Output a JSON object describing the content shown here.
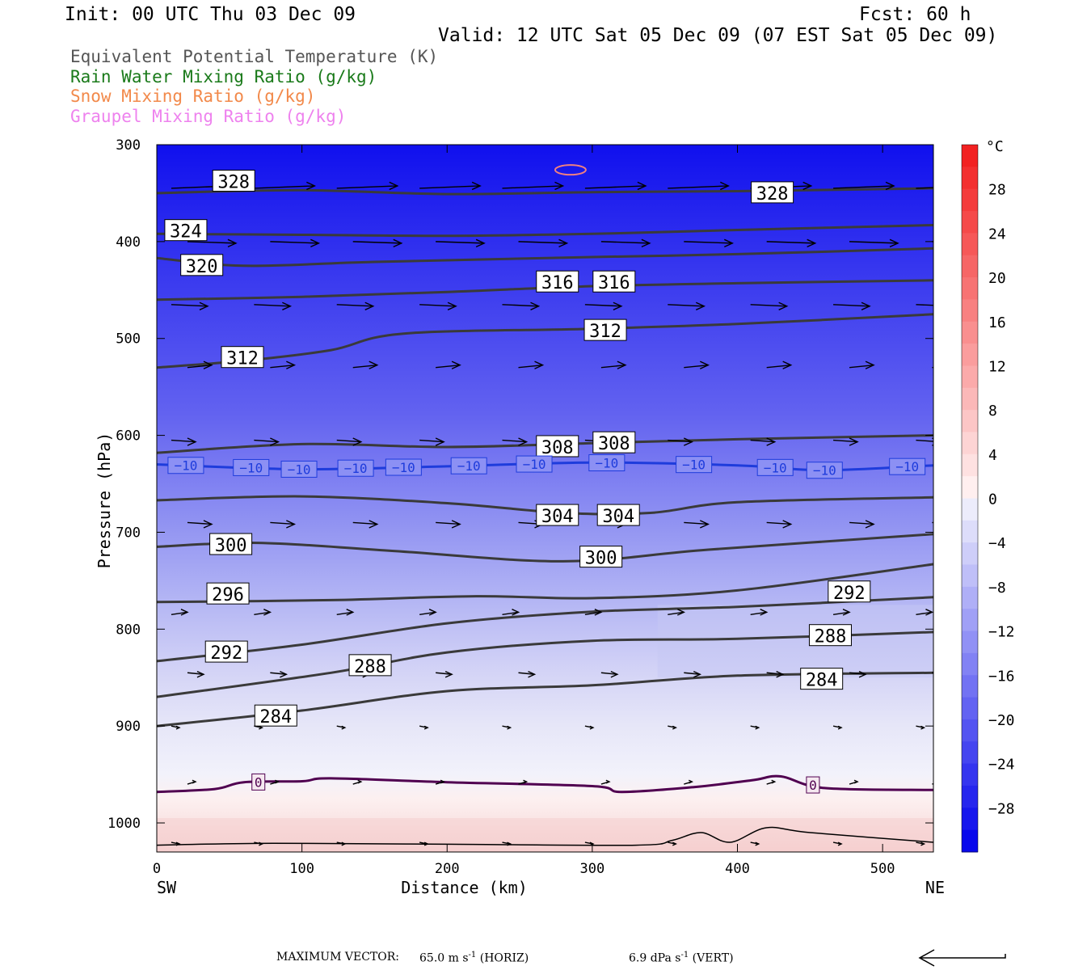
{
  "header": {
    "init": "Init: 00 UTC Thu 03 Dec 09",
    "fcst": "Fcst:   60 h",
    "valid": "Valid: 12 UTC Sat 05 Dec 09 (07 EST Sat 05 Dec 09)"
  },
  "legend": [
    {
      "label": "Equivalent Potential Temperature (K)",
      "color": "#555555"
    },
    {
      "label": "Rain Water Mixing Ratio (g/kg)",
      "color": "#1a7a1a"
    },
    {
      "label": "Snow Mixing Ratio (g/kg)",
      "color": "#f2894a"
    },
    {
      "label": "Graupel Mixing Ratio (g/kg)",
      "color": "#ee82ee"
    }
  ],
  "footer": {
    "max_vector_label": "MAXIMUM VECTOR:",
    "horiz": "65.0 m s",
    "horiz_unit": "(HORIZ)",
    "vert": "6.9 dPa s",
    "vert_unit": "(VERT)",
    "superscript": "-1"
  },
  "chart_data": {
    "type": "cross-section",
    "xlabel": "Distance (km)",
    "ylabel": "Pressure (hPa)",
    "x_ticks": [
      0,
      100,
      200,
      300,
      400,
      500
    ],
    "x_range": [
      0,
      535
    ],
    "x_end_labels": {
      "left": "SW",
      "right": "NE"
    },
    "y_ticks": [
      300,
      400,
      500,
      600,
      700,
      800,
      900,
      1000
    ],
    "y_range": [
      300,
      1030
    ],
    "colorbar": {
      "unit": "°C",
      "tick_labels": [
        "28",
        "24",
        "20",
        "16",
        "12",
        "8",
        "4",
        "0",
        "−4",
        "−8",
        "−12",
        "−16",
        "−20",
        "−24",
        "−28"
      ],
      "tick_values": [
        28,
        24,
        20,
        16,
        12,
        8,
        4,
        0,
        -4,
        -8,
        -12,
        -16,
        -20,
        -24,
        -28
      ],
      "range": [
        -32,
        32
      ]
    },
    "theta_e_contours": [
      {
        "value": 328,
        "points": [
          [
            0,
            350
          ],
          [
            100,
            347
          ],
          [
            200,
            351
          ],
          [
            300,
            349
          ],
          [
            400,
            348
          ],
          [
            535,
            345
          ]
        ]
      },
      {
        "value": 324,
        "points": [
          [
            0,
            392
          ],
          [
            100,
            393
          ],
          [
            200,
            394
          ],
          [
            300,
            392
          ],
          [
            400,
            388
          ],
          [
            535,
            383
          ]
        ]
      },
      {
        "value": 320,
        "points": [
          [
            0,
            417
          ],
          [
            60,
            425
          ],
          [
            150,
            421
          ],
          [
            300,
            416
          ],
          [
            400,
            413
          ],
          [
            535,
            407
          ]
        ]
      },
      {
        "value": 316,
        "points": [
          [
            0,
            460
          ],
          [
            100,
            457
          ],
          [
            200,
            452
          ],
          [
            300,
            446
          ],
          [
            400,
            443
          ],
          [
            535,
            440
          ]
        ]
      },
      {
        "value": 312,
        "points": [
          [
            0,
            530
          ],
          [
            60,
            523
          ],
          [
            120,
            512
          ],
          [
            170,
            495
          ],
          [
            300,
            490
          ],
          [
            400,
            485
          ],
          [
            535,
            475
          ]
        ]
      },
      {
        "value": 308,
        "points": [
          [
            0,
            618
          ],
          [
            100,
            609
          ],
          [
            200,
            612
          ],
          [
            300,
            608
          ],
          [
            400,
            604
          ],
          [
            535,
            600
          ]
        ]
      },
      {
        "value": 304,
        "points": [
          [
            0,
            667
          ],
          [
            100,
            663
          ],
          [
            200,
            670
          ],
          [
            280,
            680
          ],
          [
            340,
            680
          ],
          [
            400,
            669
          ],
          [
            535,
            664
          ]
        ]
      },
      {
        "value": 300,
        "points": [
          [
            0,
            715
          ],
          [
            70,
            711
          ],
          [
            160,
            719
          ],
          [
            280,
            730
          ],
          [
            380,
            718
          ],
          [
            535,
            702
          ]
        ]
      },
      {
        "value": 296,
        "points": [
          [
            0,
            772
          ],
          [
            120,
            770
          ],
          [
            220,
            766
          ],
          [
            300,
            768
          ],
          [
            400,
            760
          ],
          [
            535,
            733
          ]
        ]
      },
      {
        "value": 292,
        "points": [
          [
            0,
            833
          ],
          [
            100,
            816
          ],
          [
            200,
            794
          ],
          [
            300,
            782
          ],
          [
            400,
            777
          ],
          [
            535,
            767
          ]
        ]
      },
      {
        "value": 288,
        "points": [
          [
            0,
            870
          ],
          [
            120,
            845
          ],
          [
            200,
            824
          ],
          [
            300,
            812
          ],
          [
            400,
            810
          ],
          [
            535,
            803
          ]
        ]
      },
      {
        "value": 284,
        "points": [
          [
            0,
            900
          ],
          [
            100,
            884
          ],
          [
            200,
            864
          ],
          [
            300,
            858
          ],
          [
            400,
            848
          ],
          [
            535,
            845
          ]
        ]
      }
    ],
    "contour_labels": [
      {
        "text": "328",
        "x": 53,
        "y": 338
      },
      {
        "text": "328",
        "x": 424,
        "y": 350
      },
      {
        "text": "324",
        "x": 20,
        "y": 389
      },
      {
        "text": "320",
        "x": 31,
        "y": 425
      },
      {
        "text": "316",
        "x": 276,
        "y": 442
      },
      {
        "text": "316",
        "x": 315,
        "y": 442
      },
      {
        "text": "312",
        "x": 309,
        "y": 492
      },
      {
        "text": "312",
        "x": 59,
        "y": 520
      },
      {
        "text": "308",
        "x": 276,
        "y": 612
      },
      {
        "text": "308",
        "x": 315,
        "y": 608
      },
      {
        "text": "304",
        "x": 276,
        "y": 683
      },
      {
        "text": "304",
        "x": 318,
        "y": 683
      },
      {
        "text": "300",
        "x": 51,
        "y": 713
      },
      {
        "text": "300",
        "x": 306,
        "y": 726
      },
      {
        "text": "296",
        "x": 49,
        "y": 764
      },
      {
        "text": "292",
        "x": 477,
        "y": 762
      },
      {
        "text": "288",
        "x": 464,
        "y": 807
      },
      {
        "text": "292",
        "x": 48,
        "y": 824
      },
      {
        "text": "288",
        "x": 147,
        "y": 838
      },
      {
        "text": "284",
        "x": 458,
        "y": 852
      },
      {
        "text": "284",
        "x": 82,
        "y": 890
      }
    ],
    "temperature_contours": [
      {
        "value": -10,
        "label": "−10",
        "color": "#1e3cdc",
        "points": [
          [
            0,
            630
          ],
          [
            100,
            635
          ],
          [
            200,
            632
          ],
          [
            300,
            628
          ],
          [
            400,
            631
          ],
          [
            460,
            636
          ],
          [
            535,
            631
          ]
        ],
        "label_x": [
          20,
          65,
          98,
          137,
          170,
          215,
          260,
          310,
          370,
          426,
          460,
          517
        ]
      },
      {
        "value": 0,
        "label": "0",
        "color": "#500050",
        "points": [
          [
            0,
            968
          ],
          [
            40,
            965
          ],
          [
            60,
            958
          ],
          [
            100,
            957
          ],
          [
            120,
            954
          ],
          [
            200,
            958
          ],
          [
            300,
            962
          ],
          [
            320,
            968
          ],
          [
            370,
            963
          ],
          [
            410,
            956
          ],
          [
            430,
            952
          ],
          [
            460,
            964
          ],
          [
            535,
            966
          ]
        ],
        "label_x": [
          70,
          452
        ]
      }
    ],
    "wind_vector_rows_hpa": [
      345,
      400,
      465,
      530,
      605,
      690,
      785,
      845,
      900,
      960,
      1020
    ]
  }
}
